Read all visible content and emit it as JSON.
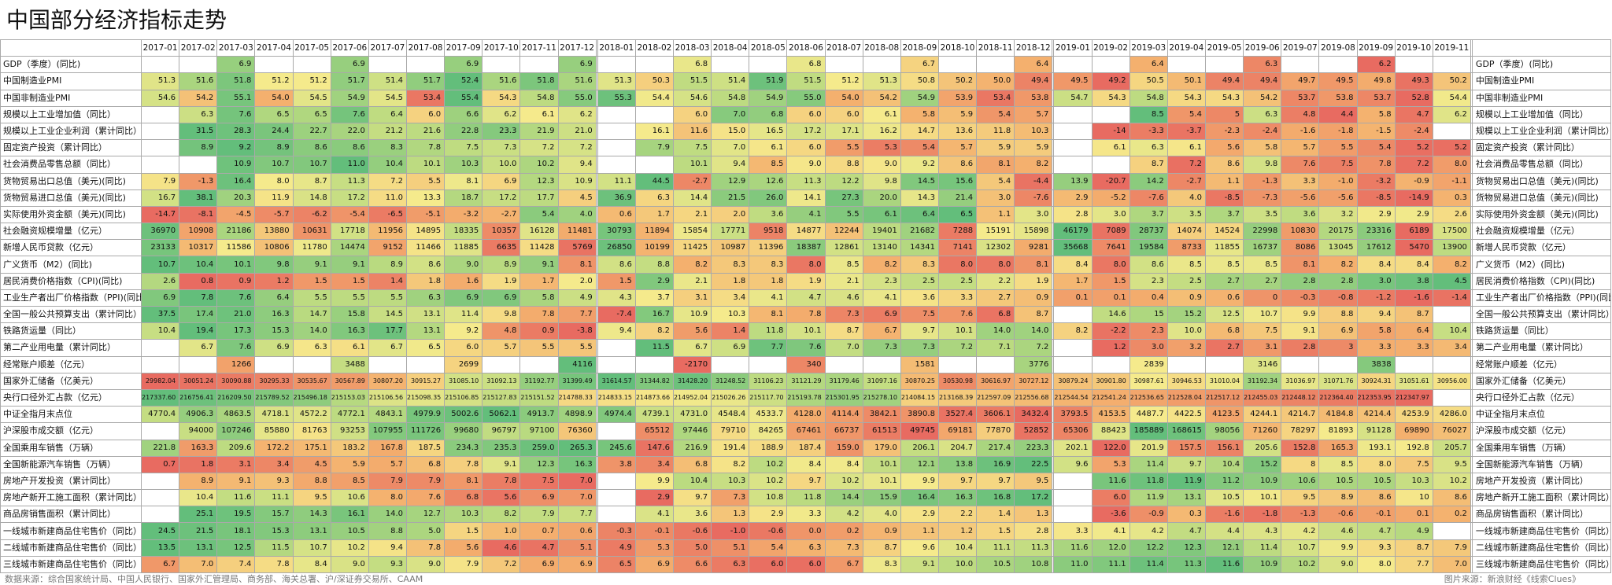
{
  "title": "中国部分经济指标走势",
  "footer": {
    "source": "数据来源：综合国家统计局、中国人民银行、国家外汇管理局、商务部、海关总署、沪/深证券交易所、CAAM",
    "credit": "图片来源：新浪财经《线索Clues》"
  },
  "months": [
    "2017-01",
    "2017-02",
    "2017-03",
    "2017-04",
    "2017-05",
    "2017-06",
    "2017-07",
    "2017-08",
    "2017-09",
    "2017-10",
    "2017-11",
    "2017-12",
    "2018-01",
    "2018-02",
    "2018-03",
    "2018-04",
    "2018-05",
    "2018-06",
    "2018-07",
    "2018-08",
    "2018-09",
    "2018-10",
    "2018-11",
    "2018-12",
    "2019-01",
    "2019-02",
    "2019-03",
    "2019-04",
    "2019-05",
    "2019-06",
    "2019-07",
    "2019-08",
    "2019-09",
    "2019-10",
    "2019-11"
  ],
  "rows": [
    {
      "label": "GDP（季度）(同比)",
      "values": [
        "",
        "",
        "6.9",
        "",
        "",
        "6.9",
        "",
        "",
        "6.9",
        "",
        "",
        "6.9",
        "",
        "",
        "6.8",
        "",
        "",
        "6.8",
        "",
        "",
        "6.7",
        "",
        "",
        "6.4",
        "",
        "",
        "6.4",
        "",
        "",
        "6.3",
        "",
        "",
        "6.2",
        "",
        ""
      ]
    },
    {
      "label": "中国制造业PMI",
      "values": [
        "51.3",
        "51.6",
        "51.8",
        "51.2",
        "51.2",
        "51.7",
        "51.4",
        "51.7",
        "52.4",
        "51.6",
        "51.8",
        "51.6",
        "51.3",
        "50.3",
        "51.5",
        "51.4",
        "51.9",
        "51.5",
        "51.2",
        "51.3",
        "50.8",
        "50.2",
        "50.0",
        "49.4",
        "49.5",
        "49.2",
        "50.5",
        "50.1",
        "49.4",
        "49.4",
        "49.7",
        "49.5",
        "49.8",
        "49.3",
        "50.2"
      ]
    },
    {
      "label": "中国非制造业PMI",
      "values": [
        "54.6",
        "54.2",
        "55.1",
        "54.0",
        "54.5",
        "54.9",
        "54.5",
        "53.4",
        "55.4",
        "54.3",
        "54.8",
        "55.0",
        "55.3",
        "54.4",
        "54.6",
        "54.8",
        "54.9",
        "55.0",
        "54.0",
        "54.2",
        "54.9",
        "53.9",
        "53.4",
        "53.8",
        "54.7",
        "54.3",
        "54.8",
        "54.3",
        "54.3",
        "54.2",
        "53.7",
        "53.8",
        "53.7",
        "52.8",
        "54.4"
      ]
    },
    {
      "label": "规模以上工业增加值（同比）",
      "values": [
        "",
        "6.3",
        "7.6",
        "6.5",
        "6.5",
        "7.6",
        "6.4",
        "6.0",
        "6.6",
        "6.2",
        "6.1",
        "6.2",
        "",
        "",
        "6.0",
        "7.0",
        "6.8",
        "6.0",
        "6.0",
        "6.1",
        "5.8",
        "5.9",
        "5.4",
        "5.7",
        "",
        "",
        "8.5",
        "5.4",
        "5",
        "6.3",
        "4.8",
        "4.4",
        "5.8",
        "4.7",
        "6.2"
      ]
    },
    {
      "label": "规模以上工业企业利润（累计同比）",
      "values": [
        "",
        "31.5",
        "28.3",
        "24.4",
        "22.7",
        "22.0",
        "21.2",
        "21.6",
        "22.8",
        "23.3",
        "21.9",
        "21.0",
        "",
        "16.1",
        "11.6",
        "15.0",
        "16.5",
        "17.2",
        "17.1",
        "16.2",
        "14.7",
        "13.6",
        "11.8",
        "10.3",
        "",
        "-14",
        "-3.3",
        "-3.7",
        "-2.3",
        "-2.4",
        "-1.6",
        "-1.8",
        "-1.5",
        "-2.4",
        ""
      ]
    },
    {
      "label": "固定资产投资（累计同比）",
      "values": [
        "",
        "8.9",
        "9.2",
        "8.9",
        "8.6",
        "8.6",
        "8.3",
        "7.8",
        "7.5",
        "7.3",
        "7.2",
        "7.2",
        "",
        "7.9",
        "7.5",
        "7.0",
        "6.1",
        "6.0",
        "5.5",
        "5.3",
        "5.4",
        "5.7",
        "5.9",
        "5.9",
        "",
        "6.1",
        "6.3",
        "6.1",
        "5.6",
        "5.8",
        "5.7",
        "5.5",
        "5.4",
        "5.2",
        "5.2"
      ]
    },
    {
      "label": "社会消费品零售总额（同比）",
      "values": [
        "",
        "",
        "10.9",
        "10.7",
        "10.7",
        "11.0",
        "10.4",
        "10.1",
        "10.3",
        "10.0",
        "10.2",
        "9.4",
        "",
        "",
        "10.1",
        "9.4",
        "8.5",
        "9.0",
        "8.8",
        "9.0",
        "9.2",
        "8.6",
        "8.1",
        "8.2",
        "",
        "",
        "8.7",
        "7.2",
        "8.6",
        "9.8",
        "7.6",
        "7.5",
        "7.8",
        "7.2",
        "8.0"
      ]
    },
    {
      "label": "货物贸易出口总值（美元)(同比)",
      "values": [
        "7.9",
        "-1.3",
        "16.4",
        "8.0",
        "8.7",
        "11.3",
        "7.2",
        "5.5",
        "8.1",
        "6.9",
        "12.3",
        "10.9",
        "11.1",
        "44.5",
        "-2.7",
        "12.9",
        "12.6",
        "11.3",
        "12.2",
        "9.8",
        "14.5",
        "15.6",
        "5.4",
        "-4.4",
        "13.9",
        "-20.7",
        "14.2",
        "-2.7",
        "1.1",
        "-1.3",
        "3.3",
        "-1.0",
        "-3.2",
        "-0.9",
        "-1.1"
      ]
    },
    {
      "label": "货物贸易进口总值（美元)(同比)",
      "values": [
        "16.7",
        "38.1",
        "20.3",
        "11.9",
        "14.8",
        "17.2",
        "11.0",
        "13.3",
        "18.7",
        "17.2",
        "17.7",
        "4.5",
        "36.9",
        "6.3",
        "14.4",
        "21.5",
        "26.0",
        "14.1",
        "27.3",
        "20.0",
        "14.3",
        "21.4",
        "3.0",
        "-7.6",
        "2.9",
        "-5.2",
        "-7.6",
        "4.0",
        "-8.5",
        "-7.3",
        "-5.6",
        "-5.6",
        "-8.5",
        "-14.9",
        "0.3"
      ]
    },
    {
      "label": "实际使用外资金额（美元)(同比)",
      "values": [
        "-14.7",
        "-8.1",
        "-4.5",
        "-5.7",
        "-6.2",
        "-5.4",
        "-6.5",
        "-5.1",
        "-3.2",
        "-2.7",
        "5.4",
        "4.0",
        "0.6",
        "1.7",
        "2.1",
        "2.0",
        "3.6",
        "4.1",
        "5.5",
        "6.1",
        "6.4",
        "6.5",
        "1.1",
        "3.0",
        "2.8",
        "3.0",
        "3.7",
        "3.5",
        "3.7",
        "3.5",
        "3.6",
        "3.2",
        "2.9",
        "2.9",
        "2.6"
      ]
    },
    {
      "label": "社会融资规模增量（亿元）",
      "values": [
        "36970",
        "10908",
        "21186",
        "13880",
        "10631",
        "17718",
        "11956",
        "14895",
        "18335",
        "10357",
        "16128",
        "11481",
        "30793",
        "11894",
        "15854",
        "17771",
        "9518",
        "14877",
        "12244",
        "19401",
        "21682",
        "7288",
        "15191",
        "15898",
        "46179",
        "7089",
        "28737",
        "14074",
        "14524",
        "22998",
        "10830",
        "20175",
        "23316",
        "6189",
        "17500"
      ]
    },
    {
      "label": "新增人民币贷款（亿元）",
      "values": [
        "23133",
        "10317",
        "11586",
        "10806",
        "11780",
        "14474",
        "9152",
        "11466",
        "11885",
        "6635",
        "11428",
        "5769",
        "26850",
        "10199",
        "11425",
        "10987",
        "11396",
        "18387",
        "12861",
        "13140",
        "14341",
        "7141",
        "12302",
        "9281",
        "35668",
        "7641",
        "19584",
        "8733",
        "11855",
        "16737",
        "8086",
        "13045",
        "17612",
        "5470",
        "13900"
      ]
    },
    {
      "label": "广义货币（M2）(同比)",
      "values": [
        "10.7",
        "10.4",
        "10.1",
        "9.8",
        "9.1",
        "9.1",
        "8.9",
        "8.6",
        "9.0",
        "8.9",
        "9.1",
        "8.1",
        "8.6",
        "8.8",
        "8.2",
        "8.3",
        "8.3",
        "8.0",
        "8.5",
        "8.2",
        "8.3",
        "8.0",
        "8.0",
        "8.1",
        "8.4",
        "8.0",
        "8.6",
        "8.5",
        "8.5",
        "8.5",
        "8.1",
        "8.2",
        "8.4",
        "8.4",
        "8.2"
      ]
    },
    {
      "label": "居民消费价格指数（CPI)(同比)",
      "values": [
        "2.6",
        "0.8",
        "0.9",
        "1.2",
        "1.5",
        "1.5",
        "1.4",
        "1.8",
        "1.6",
        "1.9",
        "1.7",
        "2.0",
        "1.5",
        "2.9",
        "2.1",
        "1.8",
        "1.8",
        "1.9",
        "2.1",
        "2.3",
        "2.5",
        "2.5",
        "2.2",
        "1.9",
        "1.7",
        "1.5",
        "2.3",
        "2.5",
        "2.7",
        "2.7",
        "2.8",
        "2.8",
        "3.0",
        "3.8",
        "4.5"
      ]
    },
    {
      "label": "工业生产者出厂价格指数（PPI)(同比)",
      "values": [
        "6.9",
        "7.8",
        "7.6",
        "6.4",
        "5.5",
        "5.5",
        "5.5",
        "6.3",
        "6.9",
        "6.9",
        "5.8",
        "4.9",
        "4.3",
        "3.7",
        "3.1",
        "3.4",
        "4.1",
        "4.7",
        "4.6",
        "4.1",
        "3.6",
        "3.3",
        "2.7",
        "0.9",
        "0.1",
        "0.1",
        "0.4",
        "0.9",
        "0.6",
        "0",
        "-0.3",
        "-0.8",
        "-1.2",
        "-1.6",
        "-1.4"
      ]
    },
    {
      "label": "全国一般公共预算支出（累计同比）",
      "values": [
        "37.5",
        "17.4",
        "21.0",
        "16.3",
        "14.7",
        "15.8",
        "14.5",
        "13.1",
        "11.4",
        "9.8",
        "7.8",
        "7.7",
        "-7.4",
        "16.7",
        "10.9",
        "10.3",
        "8.1",
        "7.8",
        "7.3",
        "6.9",
        "7.5",
        "7.6",
        "6.8",
        "8.7",
        "",
        "14.6",
        "15",
        "15.2",
        "12.5",
        "10.7",
        "9.9",
        "8.8",
        "9.4",
        "8.7",
        ""
      ]
    },
    {
      "label": "铁路货运量（同比）",
      "values": [
        "10.4",
        "19.4",
        "17.3",
        "15.3",
        "14.0",
        "16.3",
        "17.7",
        "13.1",
        "9.2",
        "4.8",
        "0.9",
        "-3.8",
        "9.4",
        "8.2",
        "5.6",
        "1.4",
        "11.8",
        "10.1",
        "8.7",
        "6.7",
        "9.7",
        "10.1",
        "14.0",
        "14.0",
        "8.2",
        "-2.2",
        "2.3",
        "10.0",
        "6.8",
        "7.5",
        "9.1",
        "6.9",
        "5.8",
        "6.4",
        "10.4"
      ]
    },
    {
      "label": "第二产业用电量（累计同比）",
      "values": [
        "",
        "6.7",
        "7.6",
        "6.9",
        "6.3",
        "6.1",
        "6.7",
        "6.5",
        "6.0",
        "5.7",
        "5.5",
        "5.5",
        "",
        "11.5",
        "6.7",
        "6.9",
        "7.7",
        "7.6",
        "7.0",
        "7.3",
        "7.3",
        "7.2",
        "7.1",
        "7.2",
        "",
        "1.2",
        "3.0",
        "3.2",
        "2.7",
        "3.1",
        "2.8",
        "3",
        "3.3",
        "3.3",
        "3.4"
      ]
    },
    {
      "label": "经常账户顺差（亿元）",
      "values": [
        "",
        "",
        "1266",
        "",
        "",
        "3488",
        "",
        "",
        "2699",
        "",
        "",
        "4116",
        "",
        "",
        "-2170",
        "",
        "",
        "340",
        "",
        "",
        "1581",
        "",
        "",
        "3776",
        "",
        "",
        "2839",
        "",
        "",
        "3146",
        "",
        "",
        "3838",
        "",
        ""
      ]
    },
    {
      "label": "国家外汇储备（亿美元）",
      "values": [
        "29982.04",
        "30051.24",
        "30090.88",
        "30295.33",
        "30535.67",
        "30567.89",
        "30807.20",
        "30915.27",
        "31085.10",
        "31092.13",
        "31192.77",
        "31399.49",
        "31614.57",
        "31344.82",
        "31428.20",
        "31248.52",
        "31106.23",
        "31121.29",
        "31179.46",
        "31097.16",
        "30870.25",
        "30530.98",
        "30616.97",
        "30727.12",
        "30879.24",
        "30901.80",
        "30987.61",
        "30946.53",
        "31010.04",
        "31192.34",
        "31036.97",
        "31071.76",
        "30924.31",
        "31051.61",
        "30956.00"
      ]
    },
    {
      "label": "央行口径外汇占款（亿元）",
      "values": [
        "217337.60",
        "216756.41",
        "216209.50",
        "215789.52",
        "215496.18",
        "215153.03",
        "215106.56",
        "215098.35",
        "215106.85",
        "215127.83",
        "215151.52",
        "214788.33",
        "214833.15",
        "214873.66",
        "214952.04",
        "215026.26",
        "215117.70",
        "215193.78",
        "215301.95",
        "215278.10",
        "214084.15",
        "213168.39",
        "212597.09",
        "212556.68",
        "212544.54",
        "212541.24",
        "212536.65",
        "212528.04",
        "212517.12",
        "212455.03",
        "212448.12",
        "212364.40",
        "212353.95",
        "212347.97",
        ""
      ]
    },
    {
      "label": "中证全指月末点位",
      "values": [
        "4770.4",
        "4906.3",
        "4863.5",
        "4718.1",
        "4572.2",
        "4772.1",
        "4843.1",
        "4979.9",
        "5002.6",
        "5062.1",
        "4913.7",
        "4898.9",
        "4974.4",
        "4739.1",
        "4731.0",
        "4548.4",
        "4533.7",
        "4128.0",
        "4114.4",
        "3842.1",
        "3890.8",
        "3527.4",
        "3606.1",
        "3432.4",
        "3793.5",
        "4153.5",
        "4487.7",
        "4422.5",
        "4123.5",
        "4244.1",
        "4214.7",
        "4184.8",
        "4214.4",
        "4253.9",
        "4286.0"
      ]
    },
    {
      "label": "沪深股市成交额（亿元）",
      "values": [
        "",
        "94000",
        "107246",
        "85880",
        "81763",
        "93253",
        "107955",
        "111726",
        "99680",
        "96797",
        "97100",
        "76360",
        "",
        "65512",
        "97446",
        "79710",
        "84265",
        "67461",
        "66737",
        "61513",
        "49745",
        "69181",
        "77870",
        "52852",
        "65306",
        "88423",
        "185889",
        "168615",
        "98056",
        "71260",
        "78297",
        "81893",
        "91128",
        "69890",
        "76027"
      ]
    },
    {
      "label": "全国乘用车销售（万辆）",
      "values": [
        "221.8",
        "163.3",
        "209.6",
        "172.2",
        "175.1",
        "183.2",
        "167.8",
        "187.5",
        "234.3",
        "235.3",
        "259.0",
        "265.3",
        "245.6",
        "147.6",
        "216.9",
        "191.4",
        "188.9",
        "187.4",
        "159.0",
        "179.0",
        "206.1",
        "204.7",
        "217.4",
        "223.3",
        "202.1",
        "122.0",
        "201.9",
        "157.5",
        "156.1",
        "205.6",
        "152.8",
        "165.3",
        "193.1",
        "192.8",
        "205.7"
      ]
    },
    {
      "label": "全国新能源汽车销售（万辆）",
      "values": [
        "0.7",
        "1.8",
        "3.1",
        "3.4",
        "4.5",
        "5.9",
        "5.7",
        "6.8",
        "7.8",
        "9.1",
        "12.3",
        "16.3",
        "3.8",
        "3.4",
        "6.8",
        "8.2",
        "10.2",
        "8.4",
        "8.4",
        "10.1",
        "12.1",
        "13.8",
        "16.9",
        "22.5",
        "9.6",
        "5.3",
        "11.4",
        "9.7",
        "10.4",
        "15.2",
        "8",
        "8.5",
        "8.0",
        "7.5",
        "9.5"
      ]
    },
    {
      "label": "房地产开发投资（累计同比）",
      "values": [
        "",
        "8.9",
        "9.1",
        "9.3",
        "8.8",
        "8.5",
        "7.9",
        "7.9",
        "8.1",
        "7.8",
        "7.5",
        "7.0",
        "",
        "9.9",
        "10.4",
        "10.3",
        "10.2",
        "9.7",
        "10.2",
        "10.1",
        "9.9",
        "9.7",
        "9.7",
        "9.5",
        "",
        "11.6",
        "11.8",
        "11.9",
        "11.2",
        "10.9",
        "10.6",
        "10.5",
        "10.5",
        "10.3",
        "10.2"
      ]
    },
    {
      "label": "房地产新开工施工面积（累计同比）",
      "values": [
        "",
        "10.4",
        "11.6",
        "11.1",
        "9.5",
        "10.6",
        "8.0",
        "7.6",
        "6.8",
        "5.6",
        "6.9",
        "7.0",
        "",
        "2.9",
        "9.7",
        "7.3",
        "10.8",
        "11.8",
        "14.4",
        "15.9",
        "16.4",
        "16.3",
        "16.8",
        "17.2",
        "",
        "6.0",
        "11.9",
        "13.1",
        "10.5",
        "10.1",
        "9.5",
        "8.9",
        "8.6",
        "10",
        "8.6"
      ]
    },
    {
      "label": "商品房销售面积（累计同比）",
      "values": [
        "",
        "25.1",
        "19.5",
        "15.7",
        "14.3",
        "16.1",
        "14.0",
        "12.7",
        "10.3",
        "8.2",
        "7.9",
        "7.7",
        "",
        "4.1",
        "3.6",
        "1.3",
        "2.9",
        "3.3",
        "4.2",
        "4.0",
        "2.9",
        "2.2",
        "1.4",
        "1.3",
        "",
        "-3.6",
        "-0.9",
        "0.3",
        "-1.6",
        "-1.8",
        "-1.3",
        "-0.6",
        "-0.1",
        "0.1",
        "0.2"
      ]
    },
    {
      "label": "一线城市新建商品住宅售价（同比）",
      "values": [
        "24.5",
        "21.5",
        "18.1",
        "15.3",
        "13.1",
        "10.5",
        "8.8",
        "5.0",
        "1.5",
        "1.0",
        "0.7",
        "0.6",
        "-0.3",
        "-0.1",
        "-0.6",
        "-1.0",
        "-0.6",
        "0.0",
        "0.2",
        "0.9",
        "1.1",
        "1.2",
        "1.5",
        "2.8",
        "3.3",
        "4.1",
        "4.2",
        "4.7",
        "4.4",
        "4.3",
        "4.2",
        "4.6",
        "4.7",
        "4.9",
        ""
      ]
    },
    {
      "label": "二线城市新建商品住宅售价（同比）",
      "values": [
        "13.5",
        "13.1",
        "12.5",
        "11.5",
        "10.7",
        "10.2",
        "9.4",
        "7.8",
        "5.6",
        "4.6",
        "4.7",
        "5.1",
        "4.9",
        "5.3",
        "5.0",
        "5.1",
        "5.4",
        "6.3",
        "7.3",
        "8.7",
        "9.6",
        "10.4",
        "11.1",
        "11.3",
        "11.6",
        "12.0",
        "12.2",
        "12.3",
        "12.1",
        "11.4",
        "10.7",
        "9.9",
        "9.3",
        "8.7",
        "7.9"
      ]
    },
    {
      "label": "三线城市新建商品住宅售价（同比）",
      "values": [
        "6.7",
        "7.0",
        "7.4",
        "7.8",
        "8.4",
        "9.0",
        "9.3",
        "9.0",
        "7.9",
        "7.2",
        "6.9",
        "6.9",
        "6.5",
        "6.9",
        "6.6",
        "6.3",
        "6.0",
        "6.0",
        "6.7",
        "8.3",
        "9.1",
        "10.0",
        "10.5",
        "10.8",
        "11.0",
        "11.1",
        "11.4",
        "11.3",
        "11.6",
        "10.9",
        "10.2",
        "9.0",
        "8.0",
        "7.7",
        "7.0"
      ]
    }
  ]
}
